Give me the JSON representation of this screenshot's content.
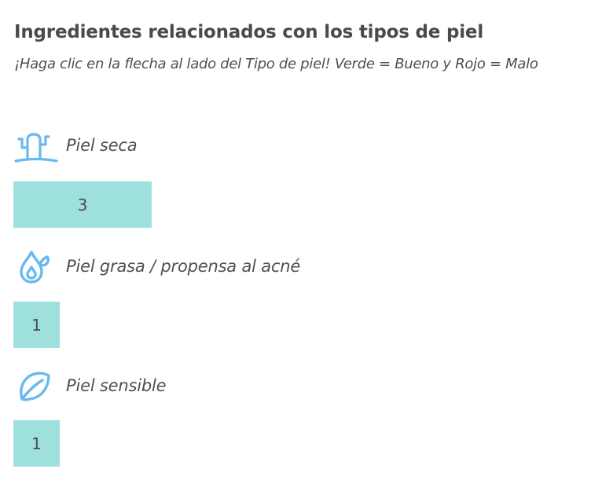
{
  "header": {
    "title": "Ingredientes relacionados con los tipos de piel",
    "subtitle": "¡Haga clic en la flecha al lado del Tipo de piel! Verde = Bueno y Rojo = Malo"
  },
  "accent_color": "#6ab8f0",
  "bar_color": "#9ee0dd",
  "skin_types": [
    {
      "label": "Piel seca",
      "icon": "cactus-icon",
      "count": "3",
      "count_value": 3
    },
    {
      "label": "Piel grasa / propensa al acné",
      "icon": "oil-drop-icon",
      "count": "1",
      "count_value": 1
    },
    {
      "label": "Piel sensible",
      "icon": "leaf-icon",
      "count": "1",
      "count_value": 1
    }
  ]
}
